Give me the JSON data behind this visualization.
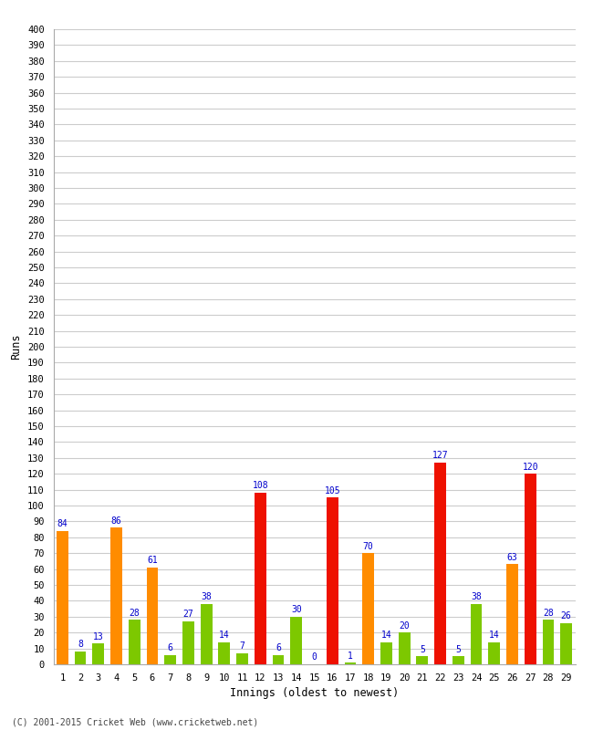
{
  "xlabel": "Innings (oldest to newest)",
  "ylabel": "Runs",
  "ylim": [
    0,
    400
  ],
  "yticks": [
    0,
    10,
    20,
    30,
    40,
    50,
    60,
    70,
    80,
    90,
    100,
    110,
    120,
    130,
    140,
    150,
    160,
    170,
    180,
    190,
    200,
    210,
    220,
    230,
    240,
    250,
    260,
    270,
    280,
    290,
    300,
    310,
    320,
    330,
    340,
    350,
    360,
    370,
    380,
    390,
    400
  ],
  "innings": [
    1,
    2,
    3,
    4,
    5,
    6,
    7,
    8,
    9,
    10,
    11,
    12,
    13,
    14,
    15,
    16,
    17,
    18,
    19,
    20,
    21,
    22,
    23,
    24,
    25,
    26,
    27,
    28,
    29
  ],
  "values": [
    84,
    8,
    13,
    86,
    28,
    61,
    6,
    27,
    38,
    14,
    7,
    108,
    6,
    30,
    0,
    105,
    1,
    70,
    14,
    20,
    5,
    127,
    5,
    38,
    14,
    63,
    120,
    28,
    26
  ],
  "colors": [
    "#ff8c00",
    "#7dc800",
    "#7dc800",
    "#ff8c00",
    "#7dc800",
    "#ff8c00",
    "#7dc800",
    "#7dc800",
    "#7dc800",
    "#7dc800",
    "#7dc800",
    "#ee1100",
    "#7dc800",
    "#7dc800",
    "#7dc800",
    "#ee1100",
    "#7dc800",
    "#ff8c00",
    "#7dc800",
    "#7dc800",
    "#7dc800",
    "#ee1100",
    "#7dc800",
    "#7dc800",
    "#7dc800",
    "#ff8c00",
    "#ee1100",
    "#7dc800",
    "#7dc800"
  ],
  "label_color": "#0000cc",
  "background_color": "#ffffff",
  "grid_color": "#cccccc",
  "footer": "(C) 2001-2015 Cricket Web (www.cricketweb.net)",
  "footer_color": "#444444"
}
